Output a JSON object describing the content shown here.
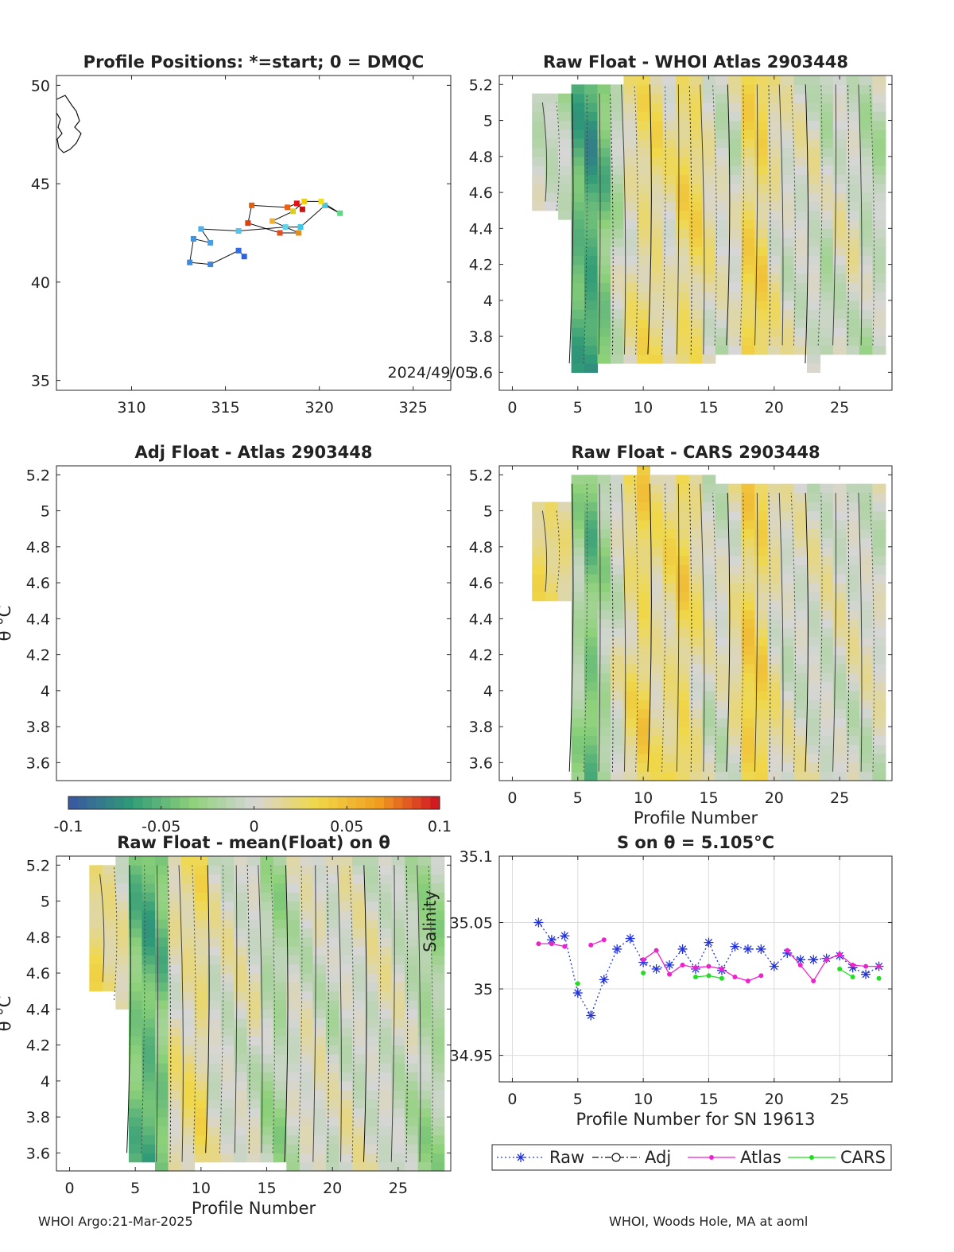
{
  "float_id": "2903448",
  "footer": {
    "left": "WHOI Argo:21-Mar-2025",
    "right": "WHOI, Woods Hole, MA at aoml"
  },
  "colorbar": {
    "ticks": [
      "-0.1",
      "-0.05",
      "0",
      "0.05",
      "0.1"
    ],
    "range": [
      -0.1,
      0.1
    ],
    "colormap": [
      "#3a56a3",
      "#2f9a77",
      "#8ed17a",
      "#d6d6d6",
      "#f0d84a",
      "#f0a020",
      "#d01020"
    ]
  },
  "chart_data": [
    {
      "id": "positions",
      "type": "scatter",
      "title": "Profile Positions: *=start; 0 = DMQC",
      "xlim": [
        306,
        327
      ],
      "ylim": [
        34.5,
        50.5
      ],
      "xticks": [
        "310",
        "315",
        "320",
        "325"
      ],
      "yticks": [
        "35",
        "40",
        "45",
        "50"
      ],
      "annotation": "2024/49/05",
      "track": [
        {
          "lon": 316.0,
          "lat": 41.3,
          "c": "#2b62e0"
        },
        {
          "lon": 315.7,
          "lat": 41.6,
          "c": "#2f6ae8"
        },
        {
          "lon": 314.2,
          "lat": 40.9,
          "c": "#3a86e0"
        },
        {
          "lon": 313.1,
          "lat": 41.0,
          "c": "#3a8ce0"
        },
        {
          "lon": 313.3,
          "lat": 42.2,
          "c": "#4192e2"
        },
        {
          "lon": 314.2,
          "lat": 42.0,
          "c": "#46a0e6"
        },
        {
          "lon": 313.7,
          "lat": 42.7,
          "c": "#4cb0ea"
        },
        {
          "lon": 315.7,
          "lat": 42.6,
          "c": "#54c4ee"
        },
        {
          "lon": 318.2,
          "lat": 42.8,
          "c": "#60d4e8"
        },
        {
          "lon": 319.0,
          "lat": 42.8,
          "c": "#3dc8e8"
        },
        {
          "lon": 320.3,
          "lat": 43.9,
          "c": "#46c8e0"
        },
        {
          "lon": 321.1,
          "lat": 43.5,
          "c": "#5ed884"
        },
        {
          "lon": 320.1,
          "lat": 44.1,
          "c": "#f0e020"
        },
        {
          "lon": 319.2,
          "lat": 44.1,
          "c": "#f0d000"
        },
        {
          "lon": 318.6,
          "lat": 43.6,
          "c": "#d8d020"
        },
        {
          "lon": 317.5,
          "lat": 43.1,
          "c": "#f0b030"
        },
        {
          "lon": 318.9,
          "lat": 42.5,
          "c": "#e09020"
        },
        {
          "lon": 317.9,
          "lat": 42.5,
          "c": "#e05020"
        },
        {
          "lon": 316.2,
          "lat": 43.0,
          "c": "#e04010"
        },
        {
          "lon": 316.4,
          "lat": 43.9,
          "c": "#e06010"
        },
        {
          "lon": 318.3,
          "lat": 43.8,
          "c": "#f06010"
        },
        {
          "lon": 318.8,
          "lat": 44.0,
          "c": "#e81010"
        },
        {
          "lon": 319.1,
          "lat": 43.7,
          "c": "#d01010"
        }
      ]
    },
    {
      "id": "raw-atlas",
      "type": "heatmap",
      "title": "Raw Float - WHOI Atlas  2903448",
      "xlim": [
        -1,
        29
      ],
      "ylim": [
        3.5,
        5.25
      ],
      "xticks": [
        "0",
        "5",
        "10",
        "15",
        "20",
        "25"
      ],
      "yticks": [
        "3.6",
        "3.8",
        "4",
        "4.2",
        "4.4",
        "4.6",
        "4.8",
        "5",
        "5.2"
      ],
      "coverage": [
        [
          2,
          4.5,
          5.15
        ],
        [
          3,
          4.5,
          5.15
        ],
        [
          4,
          4.45,
          5.15
        ],
        [
          5,
          3.6,
          5.2
        ],
        [
          6,
          3.6,
          5.2
        ],
        [
          7,
          3.65,
          5.2
        ],
        [
          8,
          3.65,
          5.2
        ],
        [
          9,
          3.65,
          5.25
        ],
        [
          10,
          3.65,
          5.25
        ],
        [
          11,
          3.65,
          5.25
        ],
        [
          12,
          3.65,
          5.25
        ],
        [
          13,
          3.65,
          5.25
        ],
        [
          14,
          3.65,
          5.25
        ],
        [
          15,
          3.65,
          5.25
        ],
        [
          16,
          3.7,
          5.25
        ],
        [
          17,
          3.7,
          5.25
        ],
        [
          18,
          3.7,
          5.25
        ],
        [
          19,
          3.7,
          5.25
        ],
        [
          20,
          3.7,
          5.25
        ],
        [
          21,
          3.7,
          5.25
        ],
        [
          22,
          3.7,
          5.25
        ],
        [
          23,
          3.6,
          5.25
        ],
        [
          24,
          3.7,
          5.25
        ],
        [
          25,
          3.7,
          5.25
        ],
        [
          26,
          3.7,
          5.25
        ],
        [
          27,
          3.7,
          5.25
        ],
        [
          28,
          3.7,
          5.25
        ]
      ],
      "anomaly": [
        -0.01,
        -0.01,
        -0.01,
        -0.05,
        -0.06,
        -0.04,
        -0.01,
        0.01,
        0.02,
        0.02,
        0.01,
        0.025,
        0.025,
        0.01,
        0.0,
        0.0,
        0.03,
        0.03,
        0.01,
        0.0,
        0.0,
        0.0,
        -0.01,
        0.0,
        0.0,
        -0.01,
        -0.01
      ]
    },
    {
      "id": "adj-atlas",
      "type": "heatmap",
      "title": "Adj Float - Atlas  2903448",
      "ylabel": "θ °C",
      "xlim": [
        -1,
        29
      ],
      "ylim": [
        3.5,
        5.25
      ],
      "yticks": [
        "3.6",
        "3.8",
        "4",
        "4.2",
        "4.4",
        "4.6",
        "4.8",
        "5",
        "5.2"
      ],
      "coverage": [],
      "anomaly": []
    },
    {
      "id": "raw-cars",
      "type": "heatmap",
      "title": "Raw Float - CARS  2903448",
      "xlabel": "Profile Number",
      "xlim": [
        -1,
        29
      ],
      "ylim": [
        3.5,
        5.25
      ],
      "xticks": [
        "0",
        "5",
        "10",
        "15",
        "20",
        "25"
      ],
      "yticks": [
        "3.6",
        "3.8",
        "4",
        "4.2",
        "4.4",
        "4.6",
        "4.8",
        "5",
        "5.2"
      ],
      "coverage": [
        [
          2,
          4.5,
          5.05
        ],
        [
          3,
          4.5,
          5.05
        ],
        [
          4,
          4.5,
          5.05
        ],
        [
          5,
          3.5,
          5.2
        ],
        [
          6,
          3.5,
          5.2
        ],
        [
          7,
          3.5,
          5.2
        ],
        [
          8,
          3.5,
          5.2
        ],
        [
          9,
          3.5,
          5.2
        ],
        [
          10,
          3.5,
          5.25
        ],
        [
          11,
          3.5,
          5.2
        ],
        [
          12,
          3.5,
          5.2
        ],
        [
          13,
          3.5,
          5.2
        ],
        [
          14,
          3.5,
          5.2
        ],
        [
          15,
          3.5,
          5.2
        ],
        [
          16,
          3.5,
          5.15
        ],
        [
          17,
          3.5,
          5.15
        ],
        [
          18,
          3.5,
          5.15
        ],
        [
          19,
          3.5,
          5.15
        ],
        [
          20,
          3.5,
          5.15
        ],
        [
          21,
          3.5,
          5.15
        ],
        [
          22,
          3.5,
          5.15
        ],
        [
          23,
          3.5,
          5.15
        ],
        [
          24,
          3.5,
          5.15
        ],
        [
          25,
          3.5,
          5.15
        ],
        [
          26,
          3.5,
          5.15
        ],
        [
          27,
          3.5,
          5.15
        ],
        [
          28,
          3.5,
          5.15
        ]
      ],
      "anomaly": [
        0.02,
        0.02,
        0.015,
        -0.02,
        -0.04,
        -0.02,
        0.0,
        0.02,
        0.03,
        0.015,
        0.02,
        0.03,
        0.015,
        0.0,
        0.0,
        0.01,
        0.035,
        0.03,
        0.01,
        0.0,
        0.0,
        0.0,
        0.0,
        0.0,
        0.0,
        0.0,
        0.0
      ]
    },
    {
      "id": "raw-mean",
      "type": "heatmap",
      "title": "Raw Float - mean(Float) on θ",
      "ylabel": "θ °C",
      "xlabel": "Profile Number",
      "xlim": [
        -1,
        29
      ],
      "ylim": [
        3.5,
        5.25
      ],
      "xticks": [
        "0",
        "5",
        "10",
        "15",
        "20",
        "25"
      ],
      "yticks": [
        "3.6",
        "3.8",
        "4",
        "4.2",
        "4.4",
        "4.6",
        "4.8",
        "5",
        "5.2"
      ],
      "coverage": [
        [
          2,
          4.5,
          5.2
        ],
        [
          3,
          4.5,
          5.2
        ],
        [
          4,
          4.4,
          5.25
        ],
        [
          5,
          3.55,
          5.25
        ],
        [
          6,
          3.55,
          5.25
        ],
        [
          7,
          3.5,
          5.25
        ],
        [
          8,
          3.5,
          5.25
        ],
        [
          9,
          3.5,
          5.25
        ],
        [
          10,
          3.55,
          5.25
        ],
        [
          11,
          3.55,
          5.25
        ],
        [
          12,
          3.55,
          5.25
        ],
        [
          13,
          3.55,
          5.25
        ],
        [
          14,
          3.55,
          5.25
        ],
        [
          15,
          3.55,
          5.25
        ],
        [
          16,
          3.55,
          5.25
        ],
        [
          17,
          3.5,
          5.25
        ],
        [
          18,
          3.5,
          5.25
        ],
        [
          19,
          3.5,
          5.25
        ],
        [
          20,
          3.5,
          5.25
        ],
        [
          21,
          3.5,
          5.25
        ],
        [
          22,
          3.5,
          5.25
        ],
        [
          23,
          3.5,
          5.25
        ],
        [
          24,
          3.5,
          5.25
        ],
        [
          25,
          3.5,
          5.25
        ],
        [
          26,
          3.5,
          5.25
        ],
        [
          27,
          3.5,
          5.25
        ],
        [
          28,
          3.5,
          5.25
        ]
      ],
      "anomaly": [
        0.02,
        0.015,
        0.01,
        -0.04,
        -0.05,
        -0.04,
        0.01,
        0.015,
        0.02,
        0.0,
        0.0,
        0.0,
        0.0,
        -0.015,
        -0.02,
        -0.005,
        0.0,
        0.0,
        -0.005,
        0.0,
        0.0,
        0.0,
        0.0,
        -0.005,
        -0.01,
        -0.02,
        -0.02
      ]
    },
    {
      "id": "salinity",
      "type": "line",
      "title": "S on θ = 5.105°C",
      "xlabel": "Profile Number for SN 19613",
      "ylabel": "Salinity",
      "xlim": [
        -1,
        29
      ],
      "ylim": [
        34.93,
        35.1
      ],
      "xticks": [
        "0",
        "5",
        "10",
        "15",
        "20",
        "25"
      ],
      "yticks": [
        "34.95",
        "35",
        "35.05",
        "35.1"
      ],
      "grid": true,
      "legend_position": "bottom",
      "series": [
        {
          "name": "Raw",
          "color": "#2233dd",
          "marker": "star",
          "dash": "2,3",
          "x": [
            2,
            3,
            4,
            5,
            6,
            7,
            8,
            9,
            10,
            11,
            12,
            13,
            14,
            15,
            16,
            17,
            18,
            19,
            20,
            21,
            22,
            23,
            24,
            25,
            26,
            27,
            28
          ],
          "y": [
            35.05,
            35.037,
            35.04,
            34.997,
            34.98,
            35.007,
            35.03,
            35.038,
            35.02,
            35.015,
            35.018,
            35.03,
            35.015,
            35.035,
            35.014,
            35.032,
            35.03,
            35.03,
            35.017,
            35.027,
            35.022,
            35.022,
            35.023,
            35.025,
            35.016,
            35.011,
            35.017
          ]
        },
        {
          "name": "Adj",
          "color": "#111111",
          "marker": "circle",
          "dash": "8,3,2,3",
          "x": [],
          "y": []
        },
        {
          "name": "Atlas",
          "color": "#ee22cc",
          "marker": "dot",
          "dash": "",
          "x": [
            2,
            3,
            4,
            null,
            6,
            7,
            null,
            null,
            10,
            11,
            12,
            13,
            14,
            15,
            16,
            17,
            18,
            19,
            null,
            21,
            22,
            23,
            24,
            25,
            26,
            27,
            28
          ],
          "y": [
            35.034,
            35.034,
            35.032,
            null,
            35.033,
            35.037,
            null,
            null,
            35.022,
            35.029,
            35.011,
            35.018,
            35.016,
            35.017,
            35.015,
            35.009,
            35.006,
            35.01,
            null,
            35.029,
            35.018,
            35.006,
            35.022,
            35.026,
            35.018,
            35.017,
            35.017
          ]
        },
        {
          "name": "CARS",
          "color": "#22dd22",
          "marker": "dot",
          "dash": "",
          "x": [
            5,
            null,
            10,
            null,
            14,
            15,
            16,
            null,
            25,
            26,
            null,
            28
          ],
          "y": [
            35.004,
            null,
            35.012,
            null,
            35.009,
            35.01,
            35.008,
            null,
            35.015,
            35.009,
            null,
            35.008
          ]
        }
      ]
    }
  ]
}
